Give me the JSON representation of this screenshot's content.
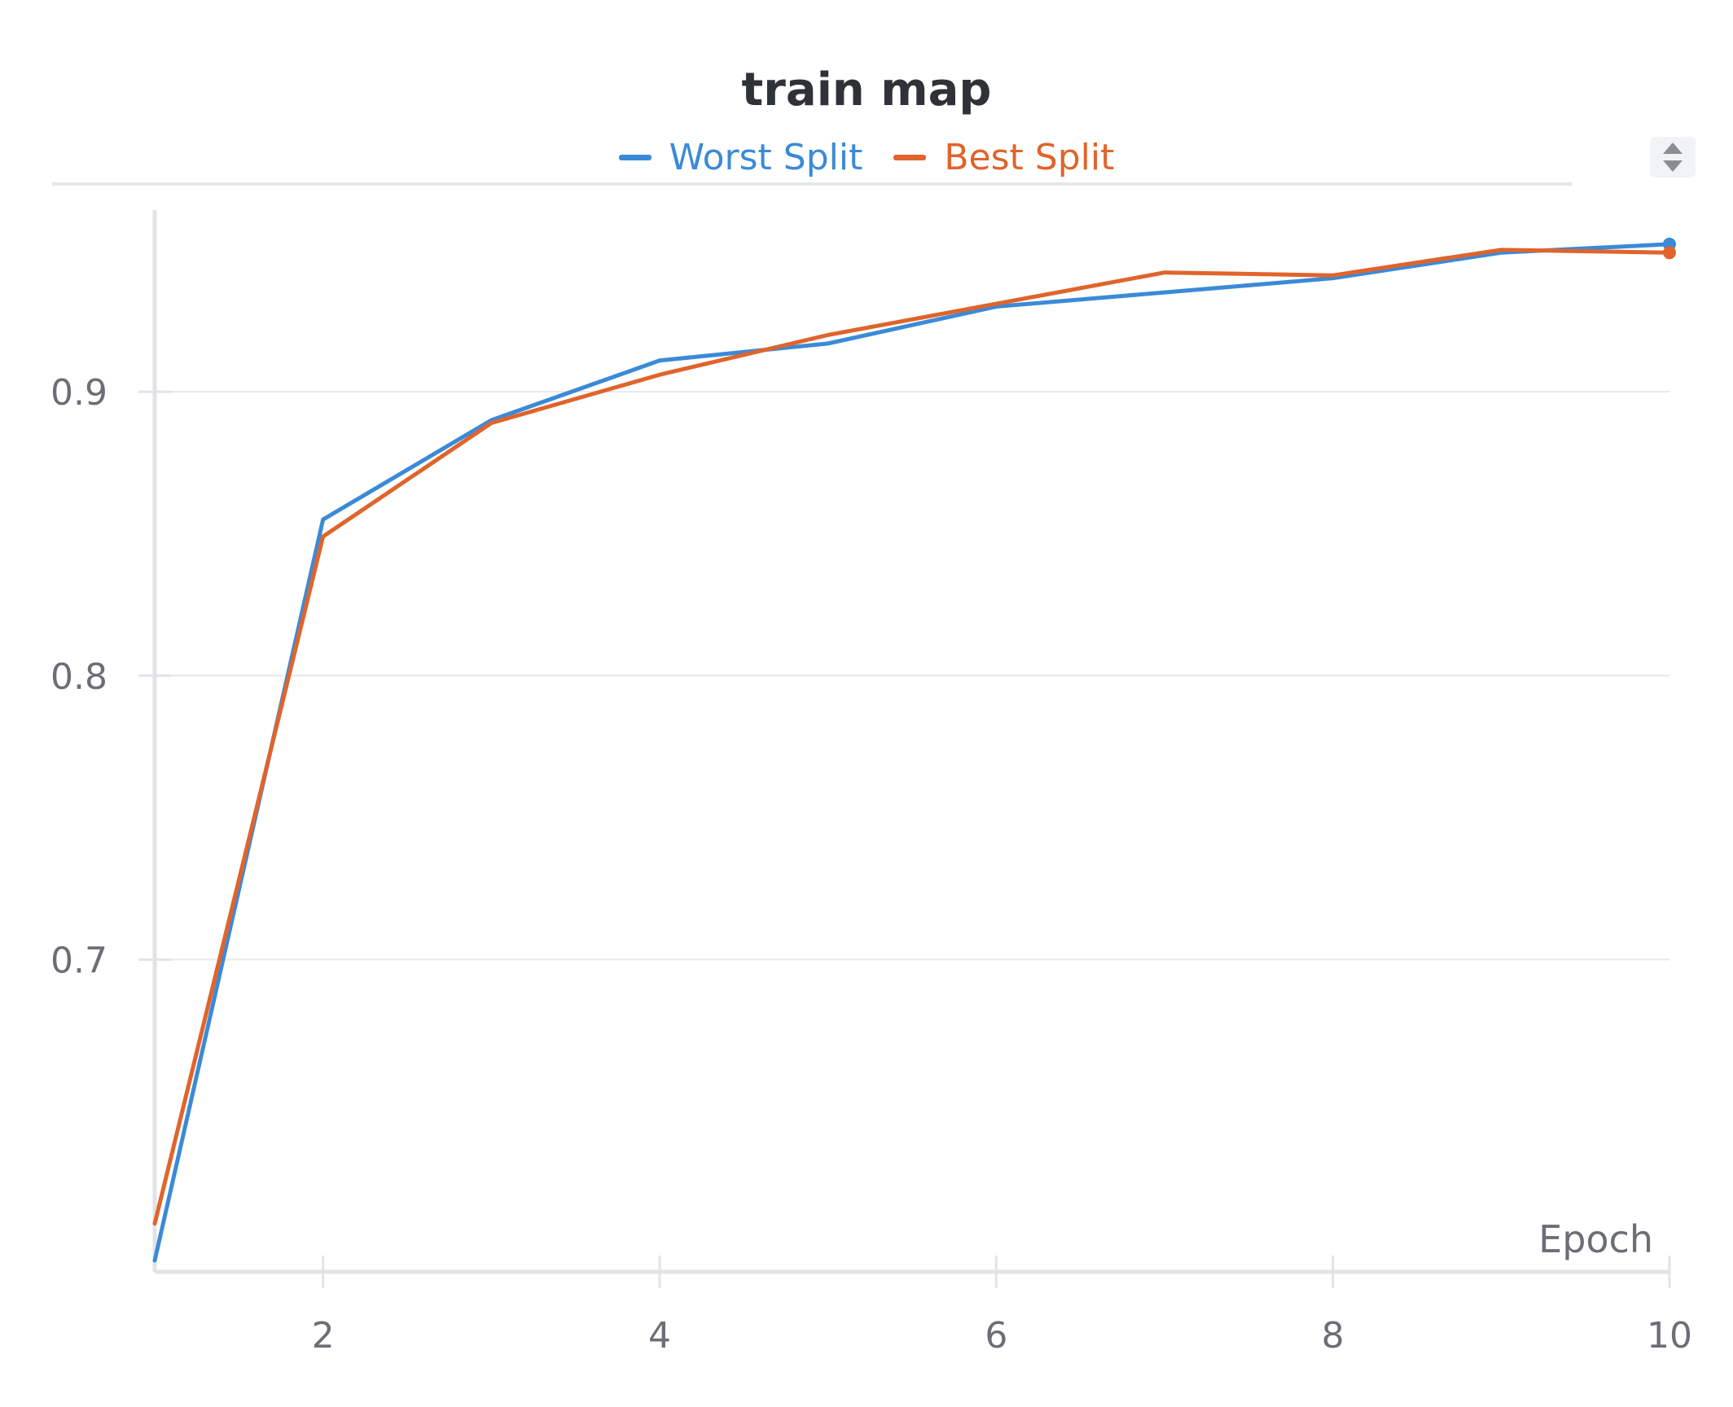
{
  "chart_data": {
    "type": "line",
    "title": "train map",
    "xlabel": "Epoch",
    "ylabel": "",
    "x": [
      1,
      2,
      3,
      4,
      5,
      6,
      7,
      8,
      9,
      10
    ],
    "xlim": [
      1,
      10
    ],
    "ylim": [
      0.59,
      0.964
    ],
    "xticks": [
      2,
      4,
      6,
      8,
      10
    ],
    "yticks": [
      0.7,
      0.8,
      0.9
    ],
    "ytick_labels": [
      "0.7",
      "0.8",
      "0.9"
    ],
    "grid": true,
    "legend_position": "top-center",
    "series": [
      {
        "name": "Worst Split",
        "color": "#3b8ad8",
        "values": [
          0.594,
          0.855,
          0.89,
          0.911,
          0.917,
          0.93,
          0.935,
          0.94,
          0.949,
          0.952
        ]
      },
      {
        "name": "Best Split",
        "color": "#e0642b",
        "values": [
          0.607,
          0.849,
          0.889,
          0.906,
          0.92,
          0.931,
          0.942,
          0.941,
          0.95,
          0.949
        ]
      }
    ]
  },
  "controls": {
    "sort_icon": "sort-updown-icon"
  }
}
